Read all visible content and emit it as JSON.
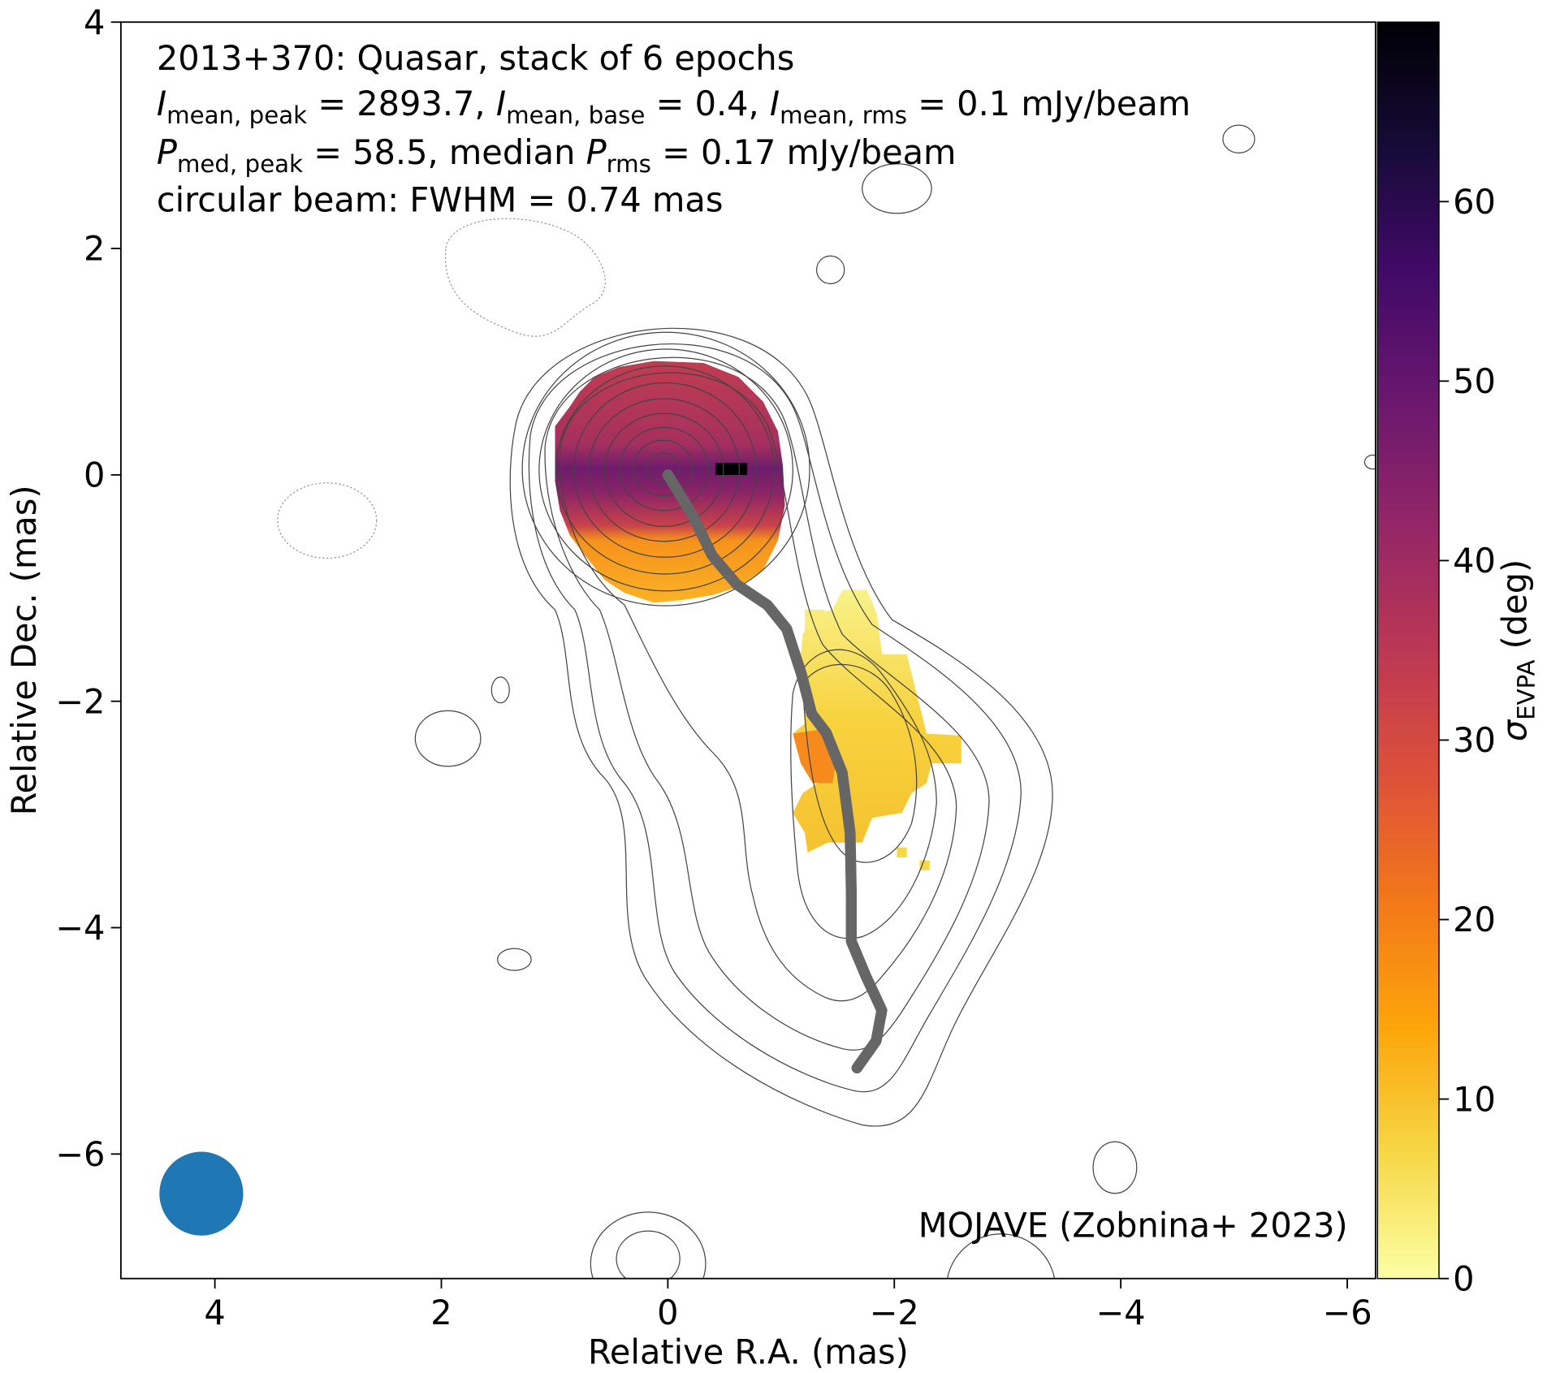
{
  "chart_data": {
    "type": "image",
    "title_lines": [
      [
        {
          "text": "2013+370: Quasar, stack of 6 epochs"
        }
      ],
      [
        {
          "text": "I",
          "italic": true
        },
        {
          "text": "mean, peak",
          "sub": true
        },
        {
          "text": " = 2893.7, "
        },
        {
          "text": "I",
          "italic": true
        },
        {
          "text": "mean, base",
          "sub": true
        },
        {
          "text": " = 0.4, "
        },
        {
          "text": "I",
          "italic": true
        },
        {
          "text": "mean, rms",
          "sub": true
        },
        {
          "text": " = 0.1 mJy/beam"
        }
      ],
      [
        {
          "text": "P",
          "italic": true
        },
        {
          "text": "med, peak",
          "sub": true
        },
        {
          "text": " = 58.5, median "
        },
        {
          "text": "P",
          "italic": true
        },
        {
          "text": "rms",
          "sub": true
        },
        {
          "text": " = 0.17 mJy/beam"
        }
      ],
      [
        {
          "text": "circular beam: FWHM = 0.74 mas"
        }
      ]
    ],
    "xlabel": "Relative R.A. (mas)",
    "ylabel": "Relative Dec. (mas)",
    "annotation": "MOJAVE (Zobnina+ 2023)",
    "colorbar_label": [
      {
        "text": "σ",
        "italic": true
      },
      {
        "text": "EVPA",
        "sub": true
      },
      {
        "text": " (deg)"
      }
    ],
    "xlim": [
      4.83,
      -6.25
    ],
    "ylim": [
      -7.1,
      4
    ],
    "xticks": [
      4,
      2,
      0,
      {
        "value": -2,
        "label": "−2"
      },
      {
        "value": -4,
        "label": "−4"
      },
      {
        "value": -6,
        "label": "−6"
      }
    ],
    "yticks": [
      4,
      2,
      0,
      {
        "value": -2,
        "label": "−2"
      },
      {
        "value": -4,
        "label": "−4"
      },
      {
        "value": -6,
        "label": "−6"
      }
    ],
    "clim": [
      0,
      70
    ],
    "cticks": [
      0,
      10,
      20,
      30,
      40,
      50,
      60
    ],
    "colormap": [
      "#fcffa4",
      "#f6d746",
      "#fca50a",
      "#f37819",
      "#dd513a",
      "#bc3754",
      "#932667",
      "#6a176e",
      "#420a68",
      "#160b39",
      "#000004"
    ],
    "ridgeline": {
      "color": "#666666",
      "x": [
        0,
        -0.22,
        -0.39,
        -0.61,
        -0.88,
        -1.05,
        -1.18,
        -1.27,
        -1.4,
        -1.54,
        -1.61,
        -1.62,
        -1.62,
        -1.75,
        -1.89,
        -1.84,
        -1.67
      ],
      "y": [
        0,
        -0.36,
        -0.71,
        -0.97,
        -1.15,
        -1.36,
        -1.76,
        -2.11,
        -2.28,
        -2.63,
        -3.16,
        -3.68,
        -4.12,
        -4.43,
        -4.73,
        -5.0,
        -5.24
      ]
    },
    "beam": {
      "x": 4.12,
      "y": -6.35,
      "diameter": 0.74,
      "color": "#1f77b4"
    }
  }
}
